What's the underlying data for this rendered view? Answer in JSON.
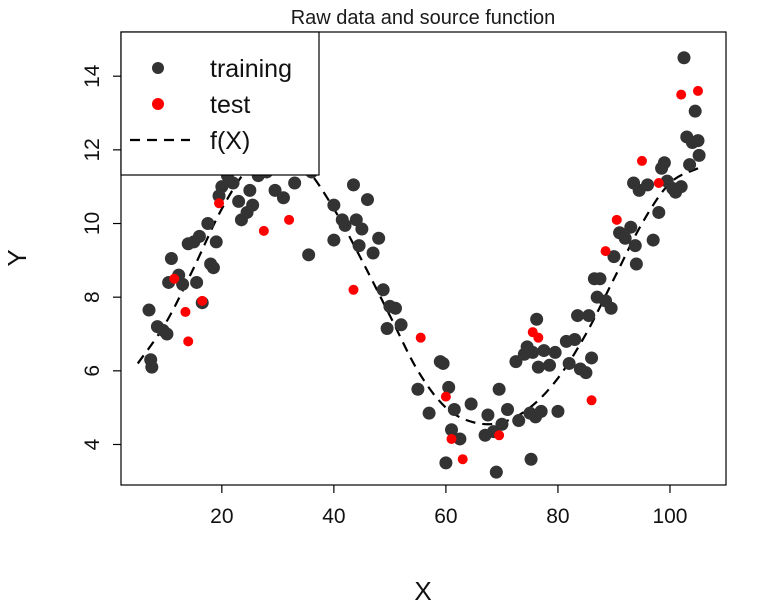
{
  "chart_data": {
    "type": "scatter",
    "title": "Raw data and source function",
    "xlabel": "X",
    "ylabel": "Y",
    "xlim": [
      2,
      110
    ],
    "ylim": [
      2.9,
      15.2
    ],
    "xticks": [
      20,
      40,
      60,
      80,
      100
    ],
    "yticks": [
      4,
      6,
      8,
      10,
      12,
      14
    ],
    "grid": false,
    "legend_position": "top-left",
    "legend": [
      {
        "label": "training",
        "marker": "point",
        "color": "#333333"
      },
      {
        "label": "test",
        "marker": "point",
        "color": "#ff0000"
      },
      {
        "label": "f(X)",
        "marker": "dashed-line",
        "color": "#000000"
      }
    ],
    "series": [
      {
        "name": "training",
        "color": "#333333",
        "points": [
          [
            7,
            7.65
          ],
          [
            7.3,
            6.3
          ],
          [
            7.5,
            6.1
          ],
          [
            8.5,
            7.2
          ],
          [
            9.5,
            7.1
          ],
          [
            10.2,
            7.0
          ],
          [
            10.5,
            8.4
          ],
          [
            11,
            9.05
          ],
          [
            12.3,
            8.6
          ],
          [
            13,
            8.35
          ],
          [
            14,
            9.45
          ],
          [
            15,
            9.5
          ],
          [
            15.5,
            8.4
          ],
          [
            16,
            9.65
          ],
          [
            16.5,
            7.85
          ],
          [
            17.5,
            10.0
          ],
          [
            18,
            8.9
          ],
          [
            18.5,
            8.8
          ],
          [
            19,
            9.5
          ],
          [
            19.5,
            10.75
          ],
          [
            20,
            11.0
          ],
          [
            21,
            11.3
          ],
          [
            22,
            11.1
          ],
          [
            23,
            10.6
          ],
          [
            23.5,
            10.1
          ],
          [
            24.5,
            10.3
          ],
          [
            25,
            10.9
          ],
          [
            25.5,
            10.5
          ],
          [
            26.5,
            11.3
          ],
          [
            28,
            11.4
          ],
          [
            29.5,
            10.9
          ],
          [
            31,
            10.7
          ],
          [
            33,
            11.1
          ],
          [
            36,
            11.4
          ],
          [
            35.5,
            9.15
          ],
          [
            40,
            10.5
          ],
          [
            40,
            9.55
          ],
          [
            41.5,
            10.1
          ],
          [
            42,
            9.95
          ],
          [
            43.5,
            11.05
          ],
          [
            44,
            10.1
          ],
          [
            44.5,
            9.4
          ],
          [
            45,
            9.85
          ],
          [
            46,
            10.65
          ],
          [
            47,
            9.2
          ],
          [
            48,
            9.6
          ],
          [
            48.8,
            8.2
          ],
          [
            49.5,
            7.15
          ],
          [
            50,
            7.75
          ],
          [
            51,
            7.7
          ],
          [
            52,
            7.25
          ],
          [
            55,
            5.5
          ],
          [
            57,
            4.85
          ],
          [
            59,
            6.25
          ],
          [
            59.5,
            6.2
          ],
          [
            60,
            3.5
          ],
          [
            60.5,
            5.55
          ],
          [
            61,
            4.4
          ],
          [
            61.5,
            4.95
          ],
          [
            62.5,
            4.15
          ],
          [
            64.5,
            5.1
          ],
          [
            67,
            4.25
          ],
          [
            67.5,
            4.8
          ],
          [
            68.5,
            4.35
          ],
          [
            69,
            3.25
          ],
          [
            69.5,
            5.5
          ],
          [
            70,
            4.55
          ],
          [
            71,
            4.95
          ],
          [
            72.5,
            6.25
          ],
          [
            73,
            4.65
          ],
          [
            74,
            6.45
          ],
          [
            74.5,
            6.65
          ],
          [
            75,
            4.85
          ],
          [
            75.2,
            3.6
          ],
          [
            75.5,
            6.5
          ],
          [
            76,
            4.75
          ],
          [
            76.5,
            6.1
          ],
          [
            76.2,
            7.4
          ],
          [
            77,
            4.9
          ],
          [
            77.5,
            6.55
          ],
          [
            78.5,
            6.15
          ],
          [
            79.5,
            6.5
          ],
          [
            80,
            4.9
          ],
          [
            81.5,
            6.8
          ],
          [
            82,
            6.2
          ],
          [
            83,
            6.85
          ],
          [
            83.5,
            7.5
          ],
          [
            84,
            6.05
          ],
          [
            85,
            5.95
          ],
          [
            85.5,
            7.5
          ],
          [
            86,
            6.35
          ],
          [
            86.5,
            8.5
          ],
          [
            87,
            8.0
          ],
          [
            87.5,
            8.5
          ],
          [
            88.5,
            7.9
          ],
          [
            89.5,
            7.7
          ],
          [
            90,
            9.1
          ],
          [
            91,
            9.75
          ],
          [
            92,
            9.6
          ],
          [
            93,
            9.9
          ],
          [
            93.5,
            11.1
          ],
          [
            93.8,
            9.4
          ],
          [
            94,
            8.9
          ],
          [
            94.5,
            10.9
          ],
          [
            96,
            11.05
          ],
          [
            97,
            9.55
          ],
          [
            98,
            10.3
          ],
          [
            98.5,
            11.5
          ],
          [
            99,
            11.65
          ],
          [
            99.5,
            11.15
          ],
          [
            100.5,
            10.95
          ],
          [
            101,
            10.85
          ],
          [
            102,
            11.0
          ],
          [
            102.5,
            14.5
          ],
          [
            103,
            12.35
          ],
          [
            103.5,
            11.6
          ],
          [
            104,
            12.2
          ],
          [
            104.5,
            13.05
          ],
          [
            105,
            12.25
          ],
          [
            105.2,
            11.85
          ]
        ]
      },
      {
        "name": "test",
        "color": "#ff0000",
        "points": [
          [
            11.5,
            8.5
          ],
          [
            13.5,
            7.6
          ],
          [
            14,
            6.8
          ],
          [
            16.5,
            7.9
          ],
          [
            19.5,
            10.55
          ],
          [
            27.5,
            9.8
          ],
          [
            32,
            10.1
          ],
          [
            43.5,
            8.2
          ],
          [
            55.5,
            6.9
          ],
          [
            60,
            5.3
          ],
          [
            61,
            4.15
          ],
          [
            63,
            3.6
          ],
          [
            69.5,
            4.25
          ],
          [
            75.5,
            7.05
          ],
          [
            76.5,
            6.9
          ],
          [
            86,
            5.2
          ],
          [
            88.5,
            9.25
          ],
          [
            90.5,
            10.1
          ],
          [
            95,
            11.7
          ],
          [
            98,
            11.1
          ],
          [
            102,
            13.5
          ],
          [
            105,
            13.6
          ]
        ]
      },
      {
        "name": "f(X)",
        "color": "#000000",
        "style": "dashed",
        "points": [
          [
            5,
            6.2
          ],
          [
            10,
            7.3
          ],
          [
            15,
            8.8
          ],
          [
            20,
            10.4
          ],
          [
            25,
            11.55
          ],
          [
            30,
            11.95
          ],
          [
            35,
            11.5
          ],
          [
            40,
            10.4
          ],
          [
            45,
            9.0
          ],
          [
            50,
            7.5
          ],
          [
            55,
            6.0
          ],
          [
            60,
            5.0
          ],
          [
            65,
            4.6
          ],
          [
            70,
            4.6
          ],
          [
            75,
            5.0
          ],
          [
            80,
            5.8
          ],
          [
            85,
            7.0
          ],
          [
            90,
            8.5
          ],
          [
            95,
            10.0
          ],
          [
            100,
            11.1
          ],
          [
            105,
            11.5
          ]
        ]
      }
    ]
  }
}
